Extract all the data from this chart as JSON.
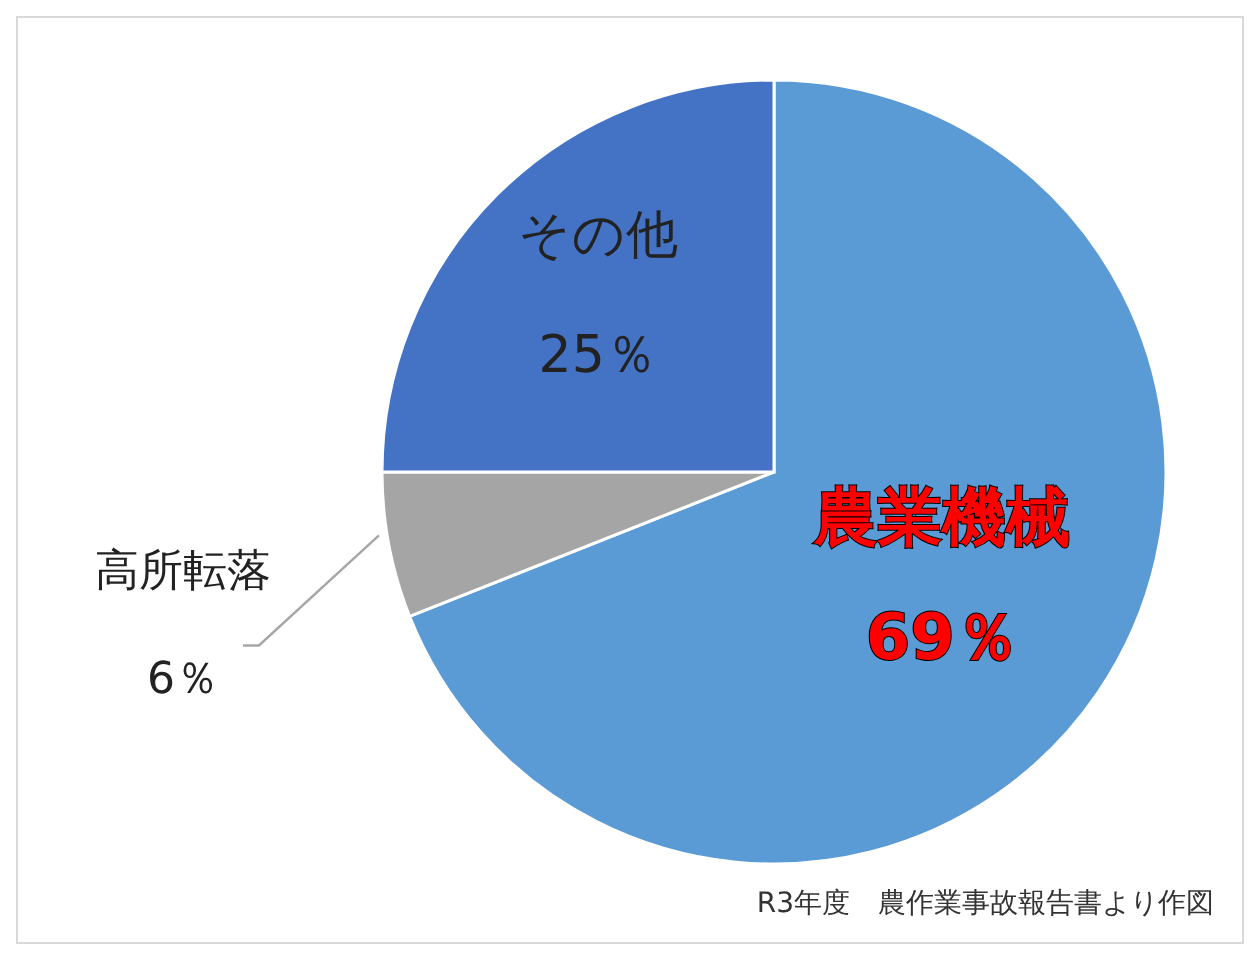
{
  "chart_data": {
    "type": "pie",
    "categories": [
      "農業機械",
      "高所転落",
      "その他"
    ],
    "values": [
      69,
      6,
      25
    ],
    "colors": [
      "#5b9bd5",
      "#a5a5a5",
      "#4472c4"
    ],
    "value_labels": [
      "69％",
      "6％",
      "25％"
    ],
    "annotations": [
      "R3年度　農作業事故報告書より作図"
    ]
  }
}
